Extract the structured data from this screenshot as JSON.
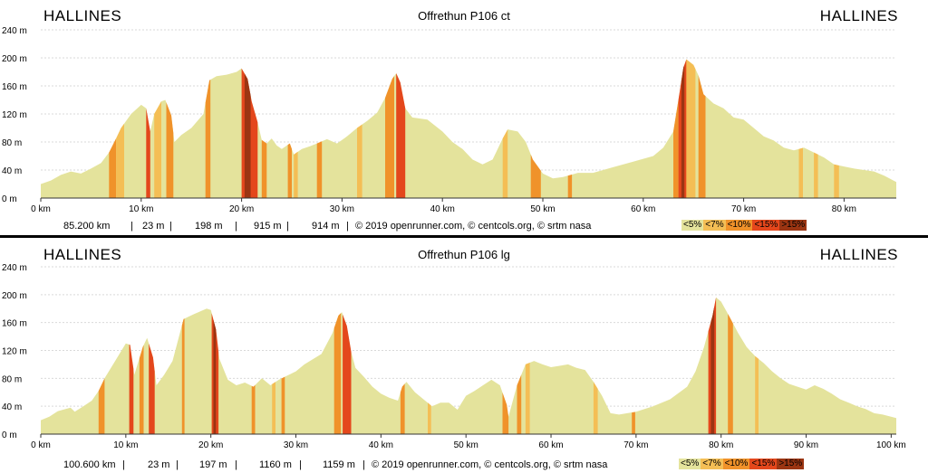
{
  "colors": {
    "lt5": "#e4e39c",
    "lt7": "#f4be55",
    "lt10": "#f0922a",
    "lt15": "#e4471c",
    "gt15": "#9b3512",
    "grid": "#d9d9d9"
  },
  "legend": [
    "<5%",
    "<7%",
    "<10%",
    "<15%",
    ">15%"
  ],
  "footer_credit": "© 2019 openrunner.com, © centcols.org, © srtm nasa",
  "chart_data": [
    {
      "type": "area",
      "title": "Offrethun P106 ct",
      "start_label": "HALLINES",
      "end_label": "HALLINES",
      "y_ticks": [
        "0 m",
        "40 m",
        "80 m",
        "120 m",
        "160 m",
        "200 m",
        "240 m"
      ],
      "x_ticks": [
        "0 km",
        "10 km",
        "20 km",
        "30 km",
        "40 km",
        "50 km",
        "60 km",
        "70 km",
        "80 km"
      ],
      "xlim": [
        0,
        85.2
      ],
      "ylim": [
        0,
        240
      ],
      "stats": [
        "85.200 km",
        "23 m",
        "198 m",
        "915 m",
        "914 m"
      ],
      "profile": [
        [
          0,
          20
        ],
        [
          1,
          25
        ],
        [
          2,
          33
        ],
        [
          3,
          38
        ],
        [
          4,
          35
        ],
        [
          5,
          42
        ],
        [
          6,
          50
        ],
        [
          6.8,
          65
        ],
        [
          7.5,
          85
        ],
        [
          8,
          100
        ],
        [
          9,
          120
        ],
        [
          10,
          133
        ],
        [
          10.5,
          128
        ],
        [
          10.9,
          95
        ],
        [
          11.3,
          120
        ],
        [
          12,
          138
        ],
        [
          12.4,
          140
        ],
        [
          13,
          118
        ],
        [
          13.3,
          80
        ],
        [
          14,
          90
        ],
        [
          15,
          100
        ],
        [
          16.2,
          120
        ],
        [
          16.8,
          168
        ],
        [
          17.5,
          174
        ],
        [
          18.5,
          176
        ],
        [
          19.5,
          180
        ],
        [
          20,
          185
        ],
        [
          20.6,
          170
        ],
        [
          21,
          138
        ],
        [
          21.6,
          108
        ],
        [
          22,
          83
        ],
        [
          22.5,
          78
        ],
        [
          23,
          85
        ],
        [
          23.5,
          75
        ],
        [
          24,
          70
        ],
        [
          24.8,
          78
        ],
        [
          25.2,
          62
        ],
        [
          26,
          70
        ],
        [
          26.8,
          74
        ],
        [
          27.5,
          78
        ],
        [
          28.5,
          84
        ],
        [
          29.5,
          78
        ],
        [
          30.5,
          88
        ],
        [
          31.5,
          100
        ],
        [
          32.5,
          110
        ],
        [
          33.5,
          122
        ],
        [
          34.3,
          143
        ],
        [
          35,
          170
        ],
        [
          35.4,
          178
        ],
        [
          35.8,
          165
        ],
        [
          36.3,
          128
        ],
        [
          37,
          115
        ],
        [
          38.5,
          112
        ],
        [
          40,
          95
        ],
        [
          41,
          80
        ],
        [
          42,
          70
        ],
        [
          43,
          55
        ],
        [
          44,
          48
        ],
        [
          45,
          55
        ],
        [
          46,
          85
        ],
        [
          46.5,
          98
        ],
        [
          47.5,
          95
        ],
        [
          48.3,
          80
        ],
        [
          49,
          55
        ],
        [
          50,
          35
        ],
        [
          51,
          28
        ],
        [
          52,
          30
        ],
        [
          53.5,
          36
        ],
        [
          55,
          36
        ],
        [
          56,
          40
        ],
        [
          57,
          44
        ],
        [
          59,
          52
        ],
        [
          61,
          60
        ],
        [
          62,
          72
        ],
        [
          63,
          95
        ],
        [
          63.5,
          140
        ],
        [
          64,
          186
        ],
        [
          64.3,
          198
        ],
        [
          65,
          190
        ],
        [
          65.5,
          175
        ],
        [
          66,
          148
        ],
        [
          67,
          135
        ],
        [
          68,
          128
        ],
        [
          69,
          115
        ],
        [
          70,
          112
        ],
        [
          71,
          100
        ],
        [
          72,
          88
        ],
        [
          73,
          82
        ],
        [
          74,
          72
        ],
        [
          75,
          68
        ],
        [
          76,
          72
        ],
        [
          77,
          65
        ],
        [
          78,
          58
        ],
        [
          79,
          48
        ],
        [
          80,
          45
        ],
        [
          81,
          42
        ],
        [
          82,
          40
        ],
        [
          83,
          38
        ],
        [
          84,
          32
        ],
        [
          85.2,
          23
        ]
      ],
      "segments": [
        [
          6.8,
          7.5,
          "lt10"
        ],
        [
          7.5,
          8.3,
          "lt7"
        ],
        [
          10.5,
          10.9,
          "lt15"
        ],
        [
          11.3,
          12,
          "lt7"
        ],
        [
          12.5,
          13.2,
          "lt10"
        ],
        [
          16.4,
          16.9,
          "lt10"
        ],
        [
          20,
          21.6,
          "lt15"
        ],
        [
          20.3,
          20.9,
          "gt15"
        ],
        [
          22,
          22.5,
          "lt10"
        ],
        [
          24.6,
          25,
          "lt10"
        ],
        [
          25.2,
          25.6,
          "lt7"
        ],
        [
          27.5,
          28,
          "lt10"
        ],
        [
          31.5,
          32,
          "lt7"
        ],
        [
          34.3,
          35.2,
          "lt10"
        ],
        [
          35.4,
          36.3,
          "lt15"
        ],
        [
          46,
          46.5,
          "lt7"
        ],
        [
          48.8,
          49.8,
          "lt10"
        ],
        [
          52.5,
          52.9,
          "lt10"
        ],
        [
          63,
          63.5,
          "lt10"
        ],
        [
          63.5,
          64.3,
          "lt15"
        ],
        [
          63.8,
          64.1,
          "gt15"
        ],
        [
          64.3,
          65.2,
          "lt7"
        ],
        [
          65.5,
          66.2,
          "lt10"
        ],
        [
          75.5,
          75.9,
          "lt7"
        ],
        [
          77,
          77.4,
          "lt7"
        ],
        [
          79,
          79.5,
          "lt7"
        ]
      ]
    },
    {
      "type": "area",
      "title": "Offrethun P106 lg",
      "start_label": "HALLINES",
      "end_label": "HALLINES",
      "y_ticks": [
        "0 m",
        "40 m",
        "80 m",
        "120 m",
        "160 m",
        "200 m",
        "240 m"
      ],
      "x_ticks": [
        "0 km",
        "10 km",
        "20 km",
        "30 km",
        "40 km",
        "50 km",
        "60 km",
        "70 km",
        "80 km",
        "90 km",
        "100 km"
      ],
      "xlim": [
        0,
        100.6
      ],
      "ylim": [
        0,
        240
      ],
      "stats": [
        "100.600 km",
        "23 m",
        "197 m",
        "1160 m",
        "1159 m"
      ],
      "profile": [
        [
          0,
          20
        ],
        [
          1,
          25
        ],
        [
          2,
          33
        ],
        [
          3.5,
          38
        ],
        [
          4,
          32
        ],
        [
          5,
          40
        ],
        [
          6,
          48
        ],
        [
          6.8,
          62
        ],
        [
          7.5,
          80
        ],
        [
          8.5,
          100
        ],
        [
          10,
          130
        ],
        [
          10.5,
          128
        ],
        [
          11,
          85
        ],
        [
          12,
          125
        ],
        [
          12.5,
          138
        ],
        [
          13.2,
          110
        ],
        [
          13.6,
          70
        ],
        [
          14.5,
          85
        ],
        [
          15.5,
          105
        ],
        [
          16.8,
          165
        ],
        [
          18,
          172
        ],
        [
          19.5,
          180
        ],
        [
          20,
          178
        ],
        [
          20.6,
          150
        ],
        [
          21,
          108
        ],
        [
          22,
          78
        ],
        [
          23,
          70
        ],
        [
          24,
          74
        ],
        [
          25,
          68
        ],
        [
          26,
          80
        ],
        [
          27,
          70
        ],
        [
          28,
          78
        ],
        [
          29,
          84
        ],
        [
          30,
          90
        ],
        [
          31,
          100
        ],
        [
          33,
          115
        ],
        [
          34.3,
          145
        ],
        [
          35,
          170
        ],
        [
          35.4,
          175
        ],
        [
          36,
          155
        ],
        [
          36.5,
          118
        ],
        [
          37,
          95
        ],
        [
          38,
          82
        ],
        [
          39,
          68
        ],
        [
          40,
          58
        ],
        [
          41,
          52
        ],
        [
          42,
          48
        ],
        [
          42.5,
          68
        ],
        [
          43,
          75
        ],
        [
          44,
          60
        ],
        [
          45,
          50
        ],
        [
          46,
          40
        ],
        [
          47,
          45
        ],
        [
          48,
          45
        ],
        [
          49,
          35
        ],
        [
          50,
          55
        ],
        [
          51,
          62
        ],
        [
          52,
          70
        ],
        [
          53,
          78
        ],
        [
          54,
          70
        ],
        [
          54.8,
          42
        ],
        [
          55,
          25
        ],
        [
          56,
          70
        ],
        [
          57,
          100
        ],
        [
          58,
          105
        ],
        [
          59,
          100
        ],
        [
          60,
          96
        ],
        [
          61,
          98
        ],
        [
          62,
          100
        ],
        [
          63,
          95
        ],
        [
          64,
          92
        ],
        [
          65,
          75
        ],
        [
          66,
          55
        ],
        [
          67,
          30
        ],
        [
          68,
          28
        ],
        [
          70,
          32
        ],
        [
          72,
          40
        ],
        [
          74,
          50
        ],
        [
          76,
          68
        ],
        [
          77,
          90
        ],
        [
          78,
          125
        ],
        [
          79,
          170
        ],
        [
          79.4,
          196
        ],
        [
          80,
          190
        ],
        [
          81,
          168
        ],
        [
          82,
          145
        ],
        [
          83,
          125
        ],
        [
          84,
          112
        ],
        [
          85,
          102
        ],
        [
          86,
          90
        ],
        [
          87,
          80
        ],
        [
          88,
          72
        ],
        [
          89,
          68
        ],
        [
          90,
          64
        ],
        [
          91,
          70
        ],
        [
          92,
          65
        ],
        [
          93,
          58
        ],
        [
          94,
          50
        ],
        [
          95,
          45
        ],
        [
          96,
          40
        ],
        [
          97,
          36
        ],
        [
          98,
          30
        ],
        [
          99,
          28
        ],
        [
          100.6,
          23
        ]
      ],
      "segments": [
        [
          6.8,
          7.5,
          "lt10"
        ],
        [
          10.4,
          10.9,
          "lt15"
        ],
        [
          11.6,
          12.1,
          "lt10"
        ],
        [
          12.7,
          13.4,
          "lt15"
        ],
        [
          16.6,
          16.9,
          "lt10"
        ],
        [
          20.1,
          20.9,
          "lt15"
        ],
        [
          20.3,
          20.6,
          "gt15"
        ],
        [
          24.8,
          25.2,
          "lt10"
        ],
        [
          27.2,
          27.6,
          "lt7"
        ],
        [
          28.3,
          28.7,
          "lt10"
        ],
        [
          34.5,
          35.3,
          "lt10"
        ],
        [
          35.5,
          36.5,
          "lt15"
        ],
        [
          42.3,
          42.8,
          "lt10"
        ],
        [
          45.5,
          45.9,
          "lt7"
        ],
        [
          54.3,
          55,
          "lt10"
        ],
        [
          56,
          56.5,
          "lt10"
        ],
        [
          57,
          57.5,
          "lt7"
        ],
        [
          65,
          65.5,
          "lt7"
        ],
        [
          69.5,
          69.9,
          "lt10"
        ],
        [
          78.5,
          79.4,
          "lt15"
        ],
        [
          78.8,
          79.2,
          "gt15"
        ],
        [
          80.8,
          81.4,
          "lt10"
        ],
        [
          84,
          84.4,
          "lt7"
        ]
      ]
    }
  ]
}
